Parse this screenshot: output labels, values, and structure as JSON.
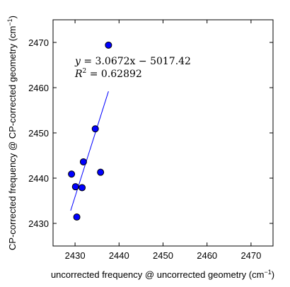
{
  "chart_data": {
    "type": "scatter",
    "title": "",
    "xlabel": "uncorrected frequency @ uncorrected geometry (cm",
    "xlabel_sup": "−1",
    "xlabel_close": ")",
    "ylabel": "CP-corrected frequency @ CP-corrected geometry (cm",
    "ylabel_sup": "−1",
    "ylabel_close": ")",
    "xlim": [
      2425,
      2475
    ],
    "ylim": [
      2425,
      2475
    ],
    "xticks": [
      2430,
      2440,
      2450,
      2460,
      2470
    ],
    "yticks": [
      2430,
      2440,
      2450,
      2460,
      2470
    ],
    "grid": false,
    "marker_color": "#0000ff",
    "line_color": "#0000ff",
    "points": [
      {
        "x": 2437.6,
        "y": 2469.4
      },
      {
        "x": 2434.6,
        "y": 2450.9
      },
      {
        "x": 2431.9,
        "y": 2443.6
      },
      {
        "x": 2435.8,
        "y": 2441.3
      },
      {
        "x": 2429.2,
        "y": 2440.9
      },
      {
        "x": 2430.1,
        "y": 2438.1
      },
      {
        "x": 2431.6,
        "y": 2437.9
      },
      {
        "x": 2430.4,
        "y": 2431.4
      }
    ],
    "fit": {
      "slope": 3.0672,
      "intercept": -5017.42,
      "x_range": [
        2429.0,
        2437.6
      ],
      "equation_lhs": "y",
      "equation_rhs": " = 3.0672x − 5017.42",
      "r2_lhs": "R",
      "r2_sup": "2",
      "r2_rhs": " = 0.62892"
    }
  }
}
